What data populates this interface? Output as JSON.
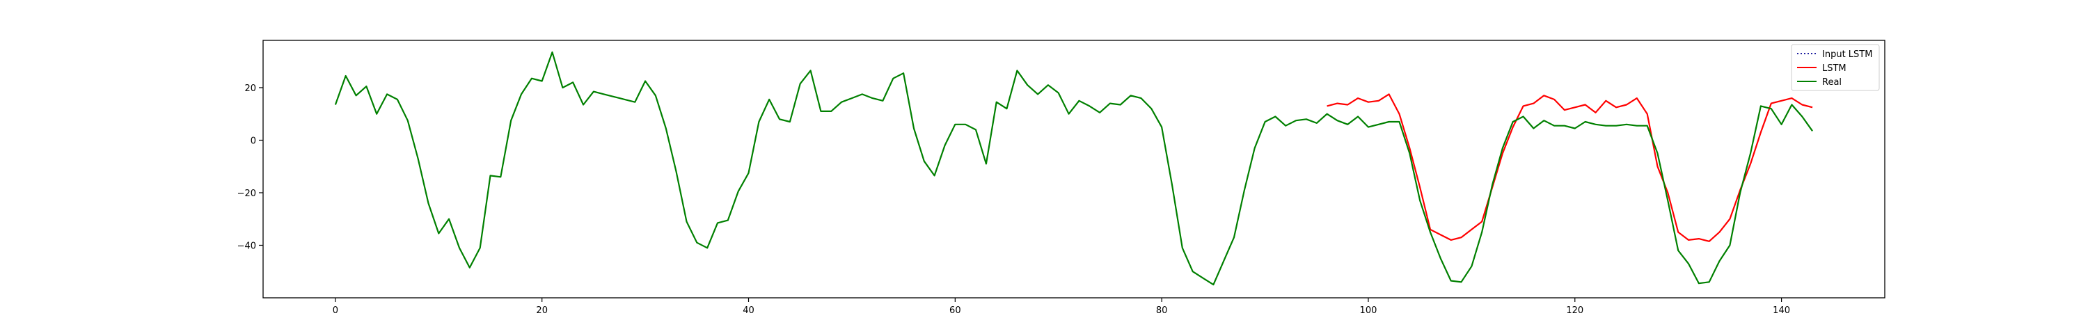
{
  "chart_data": {
    "type": "line",
    "xlim": [
      -7,
      150
    ],
    "ylim": [
      -60,
      38
    ],
    "xticks": [
      0,
      20,
      40,
      60,
      80,
      100,
      120,
      140
    ],
    "yticks": [
      -40,
      -20,
      0,
      20
    ],
    "grid": false,
    "legend_position": "top-right",
    "series": [
      {
        "name": "Input LSTM",
        "color": "#1f1fa0",
        "style": "dotted",
        "x": [],
        "y": []
      },
      {
        "name": "LSTM",
        "color": "#ff0000",
        "style": "solid",
        "x": [
          96,
          97,
          98,
          99,
          100,
          101,
          102,
          103,
          104,
          105,
          106,
          107,
          108,
          109,
          110,
          111,
          112,
          113,
          114,
          115,
          116,
          117,
          118,
          119,
          120,
          121,
          122,
          123,
          124,
          125,
          126,
          127,
          128,
          129,
          130,
          131,
          132,
          133,
          134,
          135,
          136,
          137,
          138,
          139,
          140,
          141,
          142,
          143
        ],
        "y": [
          13,
          14,
          13.5,
          16,
          14.5,
          15,
          17.5,
          10,
          -3,
          -18,
          -34,
          -36,
          -38,
          -37,
          -34,
          -31,
          -18,
          -5,
          5,
          13,
          14,
          17,
          15.5,
          11.5,
          12.5,
          13.5,
          10.5,
          15,
          12.5,
          13.5,
          16,
          10,
          -10,
          -20,
          -35,
          -38,
          -37.5,
          -38.5,
          -35,
          -30,
          -19,
          -9,
          3,
          14,
          15,
          16,
          13.5,
          12.5
        ]
      },
      {
        "name": "Real",
        "color": "#008000",
        "style": "solid",
        "x": [
          0,
          1,
          2,
          3,
          4,
          5,
          6,
          7,
          8,
          9,
          10,
          11,
          12,
          13,
          14,
          15,
          16,
          17,
          18,
          19,
          20,
          21,
          22,
          23,
          24,
          25,
          26,
          27,
          28,
          29,
          30,
          31,
          32,
          33,
          34,
          35,
          36,
          37,
          38,
          39,
          40,
          41,
          42,
          43,
          44,
          45,
          46,
          47,
          48,
          49,
          50,
          51,
          52,
          53,
          54,
          55,
          56,
          57,
          58,
          59,
          60,
          61,
          62,
          63,
          64,
          65,
          66,
          67,
          68,
          69,
          70,
          71,
          72,
          73,
          74,
          75,
          76,
          77,
          78,
          79,
          80,
          81,
          82,
          83,
          84,
          85,
          86,
          87,
          88,
          89,
          90,
          91,
          92,
          93,
          94,
          95,
          96,
          97,
          98,
          99,
          100,
          101,
          102,
          103,
          104,
          105,
          106,
          107,
          108,
          109,
          110,
          111,
          112,
          113,
          114,
          115,
          116,
          117,
          118,
          119,
          120,
          121,
          122,
          123,
          124,
          125,
          126,
          127,
          128,
          129,
          130,
          131,
          132,
          133,
          134,
          135,
          136,
          137,
          138,
          139,
          140,
          141,
          142,
          143
        ],
        "y": [
          13.5,
          24.5,
          17,
          20.5,
          10,
          17.5,
          15.5,
          7.5,
          -7,
          -24,
          -35.5,
          -30,
          -41,
          -48.5,
          -41,
          -13.5,
          -14,
          7.5,
          17.5,
          23.5,
          22.5,
          33.5,
          20,
          22,
          13.5,
          18.5,
          17.5,
          16.5,
          15.5,
          14.5,
          22.5,
          17,
          4.5,
          -12,
          -31,
          -39,
          -41,
          -31.5,
          -30.5,
          -19.5,
          -12.5,
          7,
          15.5,
          8,
          7,
          21.5,
          26.5,
          11,
          11,
          14.5,
          16,
          17.5,
          16,
          15,
          23.5,
          25.5,
          4.5,
          -8,
          -13.5,
          -2,
          6,
          6,
          4,
          -9,
          14.5,
          12,
          26.5,
          21,
          17.5,
          21,
          18,
          10,
          15,
          13,
          10.5,
          14,
          13.5,
          17,
          16,
          12,
          5,
          -17,
          -41,
          -50,
          -52.5,
          -55,
          -46,
          -37,
          -19,
          -3,
          7,
          9,
          5.5,
          7.5,
          8,
          6.5,
          10,
          7.5,
          6,
          9,
          5,
          6,
          7,
          7,
          -5,
          -23,
          -35,
          -45,
          -53.5,
          -54,
          -48,
          -35,
          -17,
          -3,
          7,
          9,
          4.5,
          7.5,
          5.5,
          5.5,
          4.5,
          7,
          6,
          5.5,
          5.5,
          6,
          5.5,
          5.5,
          -5,
          -23,
          -42,
          -47,
          -54.5,
          -54,
          -46,
          -40,
          -20,
          -5,
          13,
          12,
          6,
          13.5,
          9,
          3.5
        ]
      }
    ]
  }
}
